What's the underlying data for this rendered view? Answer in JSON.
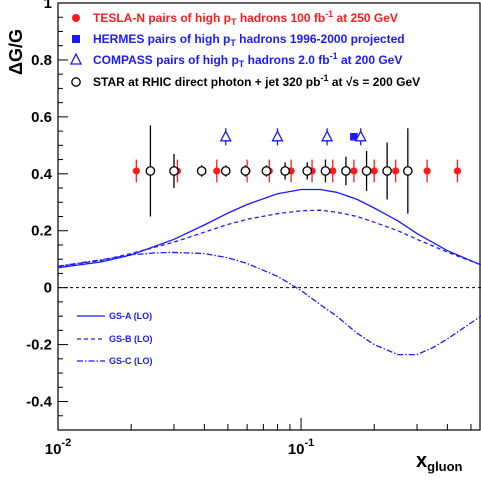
{
  "chart_data": {
    "type": "scatter",
    "xscale": "log",
    "xlim": [
      0.01,
      0.55
    ],
    "ylim": [
      -0.5,
      1.0
    ],
    "x_ticks": [
      {
        "mantissa": "10",
        "exp": "-2"
      },
      {
        "mantissa": "10",
        "exp": "-1"
      }
    ],
    "y_ticks": [
      "-0.4",
      "-0.2",
      "0",
      "0.2",
      "0.4",
      "0.6",
      "0.8",
      "1"
    ],
    "y_tick_values": [
      -0.4,
      -0.2,
      0,
      0.2,
      0.4,
      0.6,
      0.8,
      1.0
    ],
    "ylabel": "ΔG/G",
    "xlabel": {
      "main": "x",
      "sub": "gluon"
    },
    "grid": false,
    "zero_line": "dashed",
    "legend_position": "top",
    "series": [
      {
        "name": "TESLA-N pairs of high pT hadrons 100 fb-1 at 250 GeV",
        "legend": {
          "pre": "TESLA-N pairs of high p",
          "sub": "T",
          "mid": " hadrons 100 fb",
          "sup": "-1",
          "post": " at 250 GeV"
        },
        "color": "#ff1a1a",
        "marker": "filled-circle",
        "x": [
          0.021,
          0.031,
          0.045,
          0.06,
          0.074,
          0.091,
          0.111,
          0.135,
          0.165,
          0.2,
          0.245,
          0.33,
          0.44
        ],
        "y": [
          0.41,
          0.41,
          0.41,
          0.41,
          0.41,
          0.41,
          0.41,
          0.41,
          0.41,
          0.41,
          0.41,
          0.41,
          0.41
        ],
        "err": [
          0.04,
          0.04,
          0.04,
          0.04,
          0.04,
          0.04,
          0.04,
          0.04,
          0.04,
          0.04,
          0.04,
          0.04,
          0.04
        ]
      },
      {
        "name": "HERMES pairs of high pT hadrons 1996-2000 projected",
        "legend": {
          "pre": "HERMES pairs of high p",
          "sub": "T",
          "mid": " hadrons 1996-2000 projected",
          "sup": "",
          "post": ""
        },
        "color": "#1a1aff",
        "marker": "filled-square",
        "x": [
          0.165
        ],
        "y": [
          0.53
        ],
        "err": [
          0.0
        ]
      },
      {
        "name": "COMPASS pairs of high pT hadrons 2.0 fb-1 at 200 GeV",
        "legend": {
          "pre": "COMPASS pairs of high p",
          "sub": "T",
          "mid": " hadrons 2.0 fb",
          "sup": "-1",
          "post": " at 200 GeV"
        },
        "color": "#1a1aff",
        "marker": "open-triangle",
        "x": [
          0.049,
          0.08,
          0.128,
          0.176
        ],
        "y": [
          0.53,
          0.53,
          0.53,
          0.53
        ],
        "err": [
          0.03,
          0.03,
          0.03,
          0.03
        ]
      },
      {
        "name": "STAR at RHIC direct photon + jet 320 pb-1 at √s = 200 GeV",
        "legend": {
          "pre": "STAR at RHIC direct photon + jet 320 pb",
          "sub": "",
          "mid": "",
          "sup": "-1",
          "post": " at √s = 200 GeV"
        },
        "color": "#000000",
        "marker": "open-circle",
        "x": [
          0.024,
          0.03,
          0.039,
          0.049,
          0.059,
          0.072,
          0.086,
          0.106,
          0.126,
          0.153,
          0.186,
          0.226,
          0.275
        ],
        "y": [
          0.41,
          0.41,
          0.41,
          0.41,
          0.41,
          0.41,
          0.41,
          0.41,
          0.41,
          0.41,
          0.41,
          0.41,
          0.41
        ],
        "err": [
          0.16,
          0.06,
          0.02,
          0.02,
          0.02,
          0.02,
          0.03,
          0.03,
          0.04,
          0.05,
          0.07,
          0.1,
          0.15
        ]
      }
    ],
    "curves": [
      {
        "name": "GS-A (LO)",
        "color": "#1a1aff",
        "style": "solid",
        "x": [
          0.01,
          0.015,
          0.02,
          0.03,
          0.04,
          0.05,
          0.06,
          0.08,
          0.1,
          0.12,
          0.14,
          0.17,
          0.2,
          0.25,
          0.3,
          0.4,
          0.55
        ],
        "y": [
          0.07,
          0.09,
          0.115,
          0.17,
          0.22,
          0.262,
          0.292,
          0.33,
          0.345,
          0.345,
          0.335,
          0.31,
          0.28,
          0.235,
          0.19,
          0.13,
          0.08
        ]
      },
      {
        "name": "GS-B (LO)",
        "color": "#1a1aff",
        "style": "dashed",
        "x": [
          0.01,
          0.015,
          0.02,
          0.03,
          0.04,
          0.05,
          0.06,
          0.08,
          0.1,
          0.12,
          0.14,
          0.17,
          0.2,
          0.25,
          0.3,
          0.4,
          0.55
        ],
        "y": [
          0.075,
          0.095,
          0.12,
          0.16,
          0.195,
          0.222,
          0.24,
          0.26,
          0.27,
          0.272,
          0.265,
          0.25,
          0.23,
          0.2,
          0.17,
          0.125,
          0.08
        ]
      },
      {
        "name": "GS-C (LO)",
        "color": "#1a1aff",
        "style": "dashdot",
        "x": [
          0.01,
          0.015,
          0.02,
          0.025,
          0.03,
          0.04,
          0.05,
          0.06,
          0.08,
          0.1,
          0.12,
          0.14,
          0.17,
          0.2,
          0.25,
          0.3,
          0.35,
          0.4,
          0.55
        ],
        "y": [
          0.075,
          0.098,
          0.115,
          0.122,
          0.124,
          0.12,
          0.105,
          0.085,
          0.04,
          -0.01,
          -0.06,
          -0.1,
          -0.16,
          -0.2,
          -0.235,
          -0.235,
          -0.21,
          -0.18,
          -0.1
        ]
      }
    ]
  }
}
